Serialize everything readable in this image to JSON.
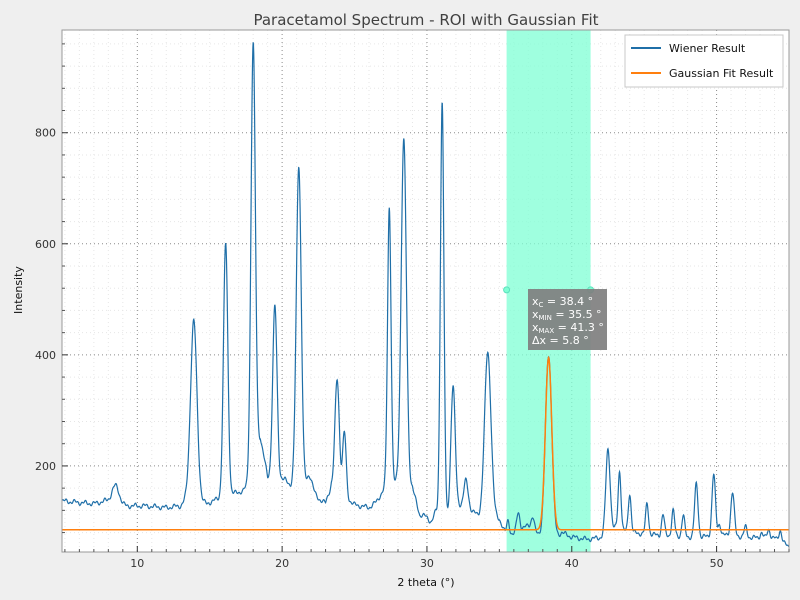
{
  "chart_data": {
    "type": "line",
    "title": "Paracetamol Spectrum - ROI with Gaussian Fit",
    "xlabel": "2 theta (°)",
    "ylabel": "Intensity",
    "xlim": [
      4.8,
      55
    ],
    "ylim": [
      45,
      985
    ],
    "x_ticks": [
      10,
      20,
      30,
      40,
      50
    ],
    "y_ticks": [
      200,
      400,
      600,
      800
    ],
    "x_minor_step": 1,
    "y_minor_step": 40,
    "grid": "dotted",
    "legend_position": "top-right",
    "colors": {
      "wiener": "#1f6fa8",
      "gaussian": "#ff7f0e",
      "roi": "#7fffd4",
      "annotation_bg": "#7f7f7f"
    },
    "roi": {
      "x_min": 35.5,
      "x_max": 41.3
    },
    "annotation": {
      "xc_label": "x",
      "xc_sub": "C",
      "xc_value": " = 38.4 °",
      "xmin_label": "x",
      "xmin_sub": "MIN",
      "xmin_value": " = 35.5 °",
      "xmax_label": "x",
      "xmax_sub": "MAX",
      "xmax_value": " = 41.3 °",
      "dx_label": "Δx = 5.8 °"
    },
    "series": [
      {
        "name": "Wiener Result",
        "baseline": [
          [
            4.8,
            137
          ],
          [
            6,
            134
          ],
          [
            7,
            132
          ],
          [
            7.8,
            137
          ],
          [
            9.2,
            128
          ],
          [
            10.5,
            128
          ],
          [
            12,
            125
          ],
          [
            13,
            128
          ],
          [
            13.5,
            145
          ],
          [
            14.8,
            132
          ],
          [
            15.5,
            140
          ],
          [
            16.6,
            150
          ],
          [
            17.3,
            155
          ],
          [
            17.6,
            165
          ],
          [
            18.5,
            250
          ],
          [
            19,
            180
          ],
          [
            20.2,
            175
          ],
          [
            20.6,
            165
          ],
          [
            21.5,
            160
          ],
          [
            22.3,
            145
          ],
          [
            23,
            133
          ],
          [
            23.4,
            165
          ],
          [
            25,
            130
          ],
          [
            26,
            125
          ],
          [
            26.5,
            135
          ],
          [
            27.2,
            165
          ],
          [
            28,
            170
          ],
          [
            29,
            160
          ],
          [
            29.5,
            112
          ],
          [
            30.3,
            108
          ],
          [
            30.6,
            120
          ],
          [
            31.5,
            110
          ],
          [
            32.2,
            130
          ],
          [
            33,
            120
          ],
          [
            33.6,
            110
          ],
          [
            34.5,
            110
          ],
          [
            35,
            105
          ],
          [
            35.4,
            78
          ],
          [
            36.2,
            75
          ],
          [
            37,
            95
          ],
          [
            37.6,
            80
          ],
          [
            38.4,
            60
          ],
          [
            39.3,
            80
          ],
          [
            40,
            72
          ],
          [
            41,
            68
          ],
          [
            41.8,
            70
          ],
          [
            42.5,
            75
          ],
          [
            43,
            88
          ],
          [
            44,
            80
          ],
          [
            45,
            78
          ],
          [
            46,
            75
          ],
          [
            47,
            74
          ],
          [
            48,
            72
          ],
          [
            49,
            72
          ],
          [
            50,
            75
          ],
          [
            51,
            75
          ],
          [
            52,
            72
          ],
          [
            53,
            70
          ],
          [
            54,
            70
          ],
          [
            55,
            55
          ]
        ],
        "peaks": [
          [
            8.5,
            32,
            0.25
          ],
          [
            13.9,
            320,
            0.22
          ],
          [
            16.1,
            455,
            0.15
          ],
          [
            18.0,
            760,
            0.15
          ],
          [
            19.5,
            310,
            0.15
          ],
          [
            21.15,
            580,
            0.17
          ],
          [
            21.9,
            30,
            0.2
          ],
          [
            23.8,
            200,
            0.15
          ],
          [
            24.3,
            115,
            0.12
          ],
          [
            27.4,
            500,
            0.12
          ],
          [
            28.4,
            620,
            0.18
          ],
          [
            30.3,
            -8,
            0.2
          ],
          [
            31.05,
            740,
            0.12
          ],
          [
            31.8,
            225,
            0.15
          ],
          [
            32.7,
            50,
            0.15
          ],
          [
            34.2,
            295,
            0.22
          ],
          [
            35.6,
            25,
            0.1
          ],
          [
            36.3,
            40,
            0.12
          ],
          [
            37.3,
            20,
            0.1
          ],
          [
            38.4,
            340,
            0.22
          ],
          [
            42.5,
            155,
            0.15
          ],
          [
            43.3,
            105,
            0.1
          ],
          [
            44.0,
            70,
            0.1
          ],
          [
            45.2,
            55,
            0.1
          ],
          [
            46.3,
            38,
            0.1
          ],
          [
            47.0,
            46,
            0.1
          ],
          [
            47.7,
            38,
            0.1
          ],
          [
            48.6,
            95,
            0.12
          ],
          [
            49.8,
            110,
            0.12
          ],
          [
            50.2,
            20,
            0.1
          ],
          [
            51.1,
            78,
            0.12
          ],
          [
            52.0,
            18,
            0.1
          ],
          [
            53.1,
            10,
            0.1
          ],
          [
            53.6,
            16,
            0.1
          ],
          [
            54.4,
            20,
            0.1
          ]
        ]
      },
      {
        "name": "Gaussian Fit Result",
        "offset": 85,
        "amplitude": 310,
        "center": 38.4,
        "sigma": 0.22
      }
    ]
  }
}
